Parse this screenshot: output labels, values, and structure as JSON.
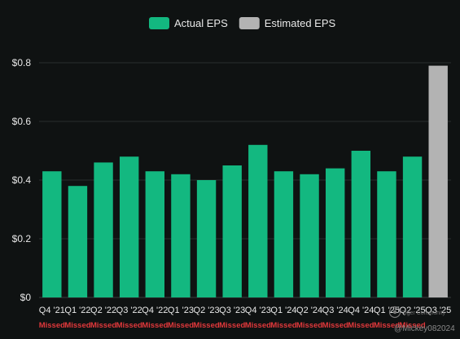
{
  "chart_data": {
    "type": "bar",
    "title": "",
    "xlabel": "",
    "ylabel": "",
    "categories": [
      "Q4 '21",
      "Q1 '22",
      "Q2 '22",
      "Q3 '22",
      "Q4 '22",
      "Q1 '23",
      "Q2 '23",
      "Q3 '23",
      "Q4 '23",
      "Q1 '24",
      "Q2 '24",
      "Q3 '24",
      "Q4 '24",
      "Q1 '25",
      "Q2 '25",
      "Q3 '25"
    ],
    "series": [
      {
        "name": "Actual EPS",
        "color": "#13b880",
        "values": [
          0.43,
          0.38,
          0.46,
          0.48,
          0.43,
          0.42,
          0.4,
          0.45,
          0.52,
          0.43,
          0.42,
          0.44,
          0.5,
          0.43,
          0.48,
          null
        ]
      },
      {
        "name": "Estimated EPS",
        "color": "#b3b3b3",
        "values": [
          null,
          null,
          null,
          null,
          null,
          null,
          null,
          null,
          null,
          null,
          null,
          null,
          null,
          null,
          null,
          0.79
        ]
      }
    ],
    "status_labels": [
      "Missed",
      "Missed",
      "Missed",
      "Missed",
      "Missed",
      "Missed",
      "Missed",
      "Missed",
      "Missed",
      "Missed",
      "Missed",
      "Missed",
      "Missed",
      "Missed",
      "Missed",
      ""
    ],
    "status_color": "#e0383b",
    "ylim": [
      0,
      0.8
    ],
    "yticks": [
      {
        "value": 0,
        "label": "$0"
      },
      {
        "value": 0.2,
        "label": "$0.2"
      },
      {
        "value": 0.4,
        "label": "$0.4"
      },
      {
        "value": 0.6,
        "label": "$0.6"
      },
      {
        "value": 0.8,
        "label": "$0.8"
      }
    ],
    "grid": true,
    "legend_position": "top-center",
    "background": "#0f1212",
    "grid_color": "#2a2e2e"
  },
  "watermark": {
    "text": "@Mickey082024",
    "subtext": "Tiger Community"
  }
}
